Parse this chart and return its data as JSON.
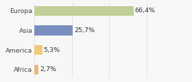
{
  "categories": [
    "Africa",
    "America",
    "Asia",
    "Europa"
  ],
  "values": [
    2.7,
    5.3,
    25.7,
    66.4
  ],
  "labels": [
    "2,7%",
    "5,3%",
    "25,7%",
    "66,4%"
  ],
  "bar_colors": [
    "#e8b87a",
    "#f0c97a",
    "#7a8fbf",
    "#bfcf96"
  ],
  "background_color": "#f7f7f7",
  "xlim": [
    0,
    90
  ],
  "label_fontsize": 6.8,
  "tick_fontsize": 6.8,
  "bar_height": 0.5
}
